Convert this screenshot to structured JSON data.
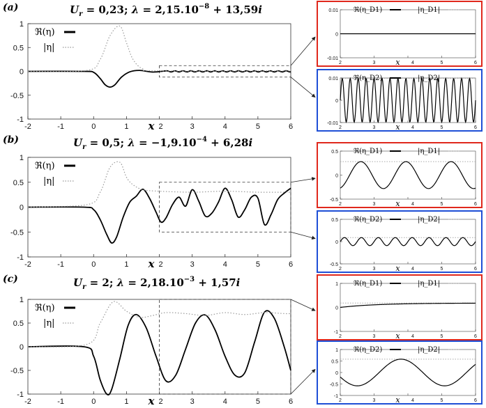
{
  "chart_data": [
    {
      "panel": "(a)",
      "type": "line",
      "title": "U_r = 0,23; λ = 2,15.10^-8 + 13,59i",
      "title_parts": {
        "ur": "0,23",
        "lam_a": "2,15.10",
        "lam_exp": "−8",
        "lam_b": " + 13,59"
      },
      "xlabel": "x",
      "ylabel": "",
      "xlim": [
        -2,
        6
      ],
      "ylim": [
        -1,
        1
      ],
      "xticks": [
        -2,
        -1,
        0,
        1,
        2,
        3,
        4,
        5,
        6
      ],
      "yticks": [
        -1,
        -0.5,
        0,
        0.5,
        1
      ],
      "legend": [
        "ℜ(η)",
        "|η|"
      ],
      "grid": false,
      "series": [
        {
          "name": "ℜ(η)",
          "style": "solid",
          "color": "#000000",
          "wave": "pulse",
          "x": [
            -2,
            -0.3,
            0,
            0.2,
            0.35,
            0.5,
            0.65,
            0.85,
            1.1,
            1.4,
            1.8,
            2.2,
            3,
            4,
            5,
            6
          ],
          "y": [
            0,
            0,
            -0.02,
            -0.15,
            -0.28,
            -0.33,
            -0.28,
            -0.12,
            -0.01,
            0.02,
            -0.015,
            0.01,
            0.0,
            0.0,
            0.0,
            0.0
          ]
        },
        {
          "name": "|η|",
          "style": "dotted",
          "color": "#9a9a9a",
          "x": [
            -2,
            -0.2,
            0.2,
            0.5,
            0.8,
            1.0,
            1.2,
            1.5,
            2,
            6
          ],
          "y": [
            0,
            0.02,
            0.25,
            0.75,
            0.95,
            0.6,
            0.25,
            0.05,
            0.01,
            0.01
          ]
        }
      ],
      "insets": [
        {
          "frame": "#e0281c",
          "xlim": [
            2,
            6
          ],
          "ylim": [
            -0.01,
            0.01
          ],
          "yticks": [
            -0.01,
            0,
            0.01
          ],
          "xticks": [
            2,
            3,
            4,
            5,
            6
          ],
          "legend": [
            "ℜ(η_D1)",
            "|η_D1|"
          ],
          "wave": {
            "amp": 0.0,
            "cycles": 0,
            "phase": 0,
            "mod": 0
          }
        },
        {
          "frame": "#1e4fd6",
          "xlim": [
            2,
            6
          ],
          "ylim": [
            -0.01,
            0.01
          ],
          "yticks": [
            -0.01,
            0,
            0.01
          ],
          "xticks": [
            2,
            3,
            4,
            5,
            6
          ],
          "legend": [
            "ℜ(η_D2)",
            "|η_D2|"
          ],
          "wave": {
            "amp": 0.0098,
            "cycles": 17,
            "phase": 0,
            "mod": 0
          }
        }
      ]
    },
    {
      "panel": "(b)",
      "type": "line",
      "title": "U_r = 0,5; λ = −1,9.10^-4 + 6,28i",
      "title_parts": {
        "ur": "0,5",
        "lam_a": "−1,9.10",
        "lam_exp": "−4",
        "lam_b": " + 6,28"
      },
      "xlabel": "x",
      "ylabel": "",
      "xlim": [
        -2,
        6
      ],
      "ylim": [
        -1,
        1
      ],
      "xticks": [
        -2,
        -1,
        0,
        1,
        2,
        3,
        4,
        5,
        6
      ],
      "yticks": [
        -1,
        -0.5,
        0,
        0.5,
        1
      ],
      "legend": [
        "ℜ(η)",
        "|η|"
      ],
      "grid": false,
      "series": [
        {
          "name": "ℜ(η)",
          "style": "solid",
          "color": "#000000",
          "x": [
            -2,
            -0.3,
            0,
            0.2,
            0.4,
            0.55,
            0.7,
            0.9,
            1.1,
            1.3,
            1.5,
            1.7,
            1.9,
            2.05,
            2.2,
            2.4,
            2.6,
            2.8,
            3.0,
            3.2,
            3.4,
            3.6,
            3.8,
            4.0,
            4.2,
            4.4,
            4.6,
            4.8,
            5.0,
            5.2,
            5.4,
            5.6,
            5.8,
            6.0
          ],
          "y": [
            0,
            0,
            -0.05,
            -0.25,
            -0.55,
            -0.72,
            -0.6,
            -0.2,
            0.1,
            0.22,
            0.36,
            0.18,
            -0.1,
            -0.3,
            -0.22,
            0.05,
            0.2,
            0.02,
            0.35,
            0.12,
            -0.18,
            -0.12,
            0.1,
            0.38,
            0.15,
            -0.2,
            -0.05,
            0.2,
            0.18,
            -0.35,
            -0.15,
            0.15,
            0.28,
            0.38
          ]
        },
        {
          "name": "|η|",
          "style": "dotted",
          "color": "#9a9a9a",
          "x": [
            -2,
            -0.2,
            0.2,
            0.5,
            0.8,
            1.0,
            1.2,
            1.5,
            2,
            3,
            4,
            5,
            6
          ],
          "y": [
            0,
            0.05,
            0.3,
            0.8,
            0.9,
            0.6,
            0.45,
            0.35,
            0.32,
            0.3,
            0.32,
            0.3,
            0.3
          ]
        }
      ],
      "insets": [
        {
          "frame": "#e0281c",
          "xlim": [
            2,
            6
          ],
          "ylim": [
            -0.5,
            0.5
          ],
          "yticks": [
            -0.5,
            0,
            0.5
          ],
          "xticks": [
            2,
            3,
            4,
            5,
            6
          ],
          "legend": [
            "ℜ(η_D1)",
            "|η_D1|"
          ],
          "wave": {
            "amp": 0.28,
            "cycles": 3,
            "phase": -1.3,
            "mod": 0
          }
        },
        {
          "frame": "#1e4fd6",
          "xlim": [
            2,
            6
          ],
          "ylim": [
            -0.5,
            0.5
          ],
          "yticks": [
            -0.5,
            0,
            0.5
          ],
          "xticks": [
            2,
            3,
            4,
            5,
            6
          ],
          "legend": [
            "ℜ(η_D2)",
            "|η_D2|"
          ],
          "wave": {
            "amp": 0.09,
            "cycles": 8,
            "phase": 0,
            "mod": 0
          }
        }
      ]
    },
    {
      "panel": "(c)",
      "type": "line",
      "title": "U_r = 2; λ = 2,18.10^-3 + 1,57i",
      "title_parts": {
        "ur": "2",
        "lam_a": "2,18.10",
        "lam_exp": "−3",
        "lam_b": " + 1,57"
      },
      "xlabel": "x",
      "ylabel": "",
      "xlim": [
        -2,
        6
      ],
      "ylim": [
        -1,
        1
      ],
      "xticks": [
        -2,
        -1,
        0,
        1,
        2,
        3,
        4,
        5,
        6
      ],
      "yticks": [
        -1,
        -0.5,
        0,
        0.5,
        1
      ],
      "legend": [
        "ℜ(η)",
        "|η|"
      ],
      "grid": false,
      "series": [
        {
          "name": "ℜ(η)",
          "style": "solid",
          "color": "#000000",
          "x": [
            -2,
            -0.3,
            0,
            0.2,
            0.4,
            0.55,
            0.8,
            1.05,
            1.3,
            1.6,
            1.9,
            2.2,
            2.5,
            2.8,
            3.1,
            3.4,
            3.7,
            4.0,
            4.3,
            4.6,
            4.9,
            5.2,
            5.5,
            5.8,
            6.0
          ],
          "y": [
            0,
            0,
            -0.2,
            -0.7,
            -1.0,
            -0.9,
            -0.25,
            0.45,
            0.68,
            0.4,
            -0.2,
            -0.72,
            -0.6,
            -0.05,
            0.5,
            0.67,
            0.35,
            -0.2,
            -0.6,
            -0.55,
            0.1,
            0.73,
            0.6,
            0.0,
            -0.5
          ]
        },
        {
          "name": "|η|",
          "style": "dotted",
          "color": "#9a9a9a",
          "x": [
            -2,
            -0.2,
            0.2,
            0.6,
            1.0,
            1.4,
            1.8,
            2.2,
            2.8,
            3.4,
            4.0,
            4.6,
            5.2,
            5.8,
            6.0
          ],
          "y": [
            0,
            0.05,
            0.5,
            0.95,
            0.75,
            0.62,
            0.66,
            0.72,
            0.7,
            0.66,
            0.72,
            0.68,
            0.72,
            0.7,
            0.7
          ]
        }
      ],
      "insets": [
        {
          "frame": "#e0281c",
          "xlim": [
            2,
            6
          ],
          "ylim": [
            -1,
            1
          ],
          "yticks": [
            -1,
            0,
            1
          ],
          "xticks": [
            2,
            3,
            4,
            5,
            6
          ],
          "legend": [
            "ℜ(η_D1)",
            "|η_D1|"
          ],
          "wave": {
            "amp": 0.0,
            "cycles": 0,
            "phase": 0,
            "mod": 1
          }
        },
        {
          "frame": "#1e4fd6",
          "xlim": [
            2,
            6
          ],
          "ylim": [
            -1,
            1
          ],
          "yticks": [
            -1,
            -0.5,
            0,
            0.5,
            1
          ],
          "xticks": [
            2,
            3,
            4,
            5,
            6
          ],
          "legend": [
            "ℜ(η_D2)",
            "|η_D2|"
          ],
          "wave": {
            "amp": 0.58,
            "cycles": 1.55,
            "phase": -2.8,
            "mod": 0
          }
        }
      ]
    }
  ]
}
